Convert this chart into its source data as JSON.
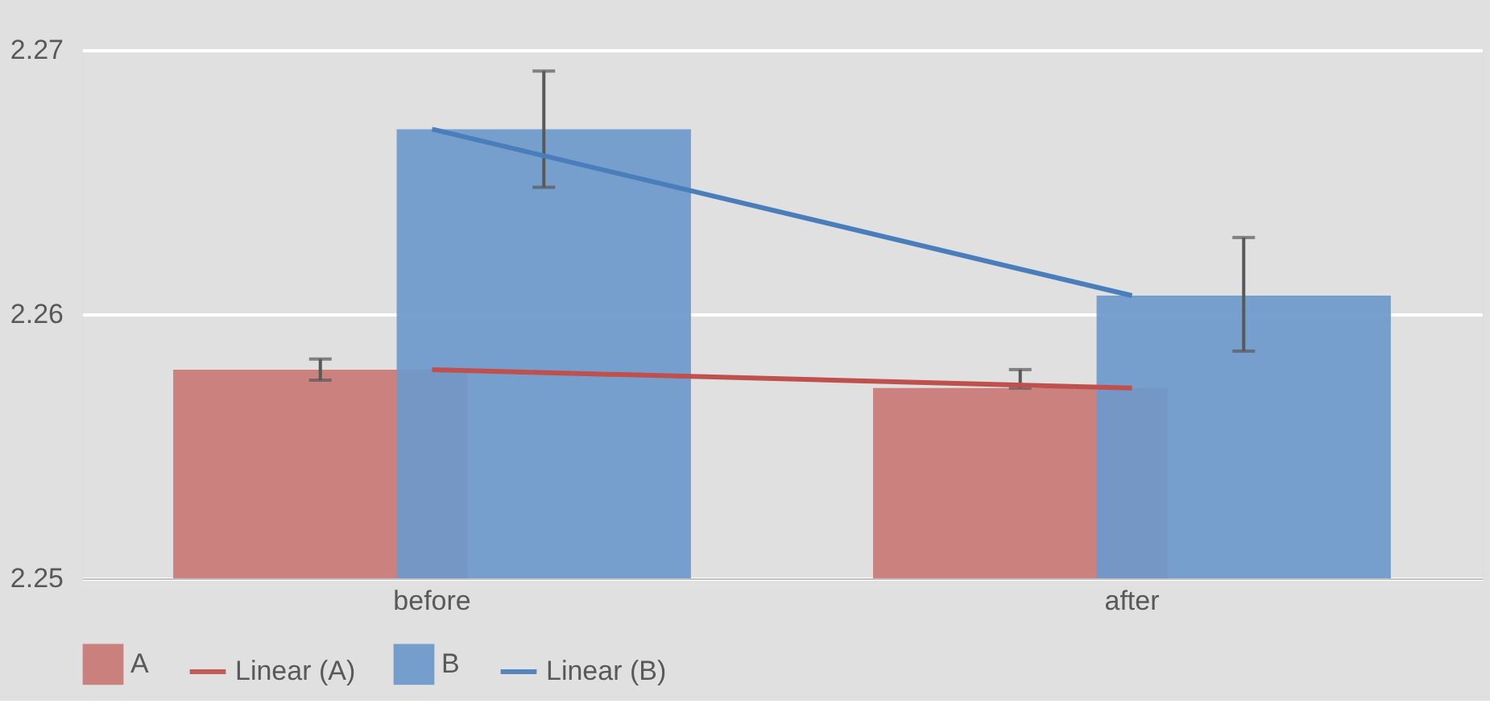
{
  "chart_data": {
    "type": "bar",
    "categories": [
      "before",
      "after"
    ],
    "ylim": [
      2.25,
      2.27
    ],
    "yticks": [
      2.25,
      2.26,
      2.27
    ],
    "grid": "y",
    "legend": "bottom",
    "series": [
      {
        "name": "A",
        "color": "#c97874",
        "values": [
          2.2579,
          2.2572
        ],
        "errors": [
          0.0004,
          [
            2.2572,
            2.2579
          ]
        ]
      },
      {
        "name": "Linear (A)",
        "type": "line",
        "color": "#c0504d",
        "values": [
          2.2579,
          2.2572
        ]
      },
      {
        "name": "B",
        "color": "#6e99cb",
        "values": [
          2.267,
          2.2607
        ],
        "errors": [
          0.0022,
          [
            2.2586,
            2.2629
          ]
        ]
      },
      {
        "name": "Linear (B)",
        "type": "line",
        "color": "#4a7ebb",
        "values": [
          2.267,
          2.2607
        ]
      }
    ]
  }
}
